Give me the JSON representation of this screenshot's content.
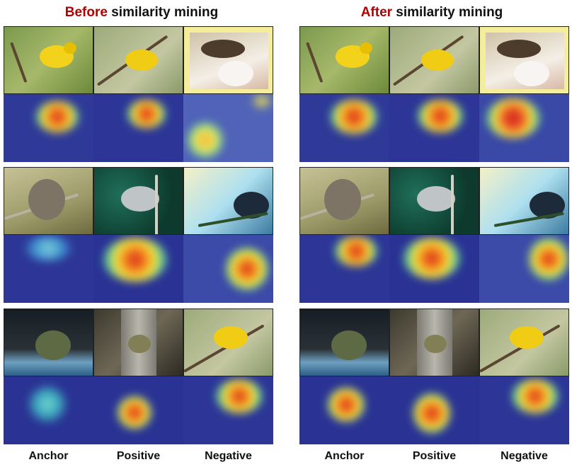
{
  "titles": {
    "before_highlight": "Before",
    "before_rest": " similarity mining",
    "after_highlight": "After",
    "after_rest": " similarity mining"
  },
  "column_labels": {
    "anchor": "Anchor",
    "positive": "Positive",
    "negative": "Negative"
  }
}
